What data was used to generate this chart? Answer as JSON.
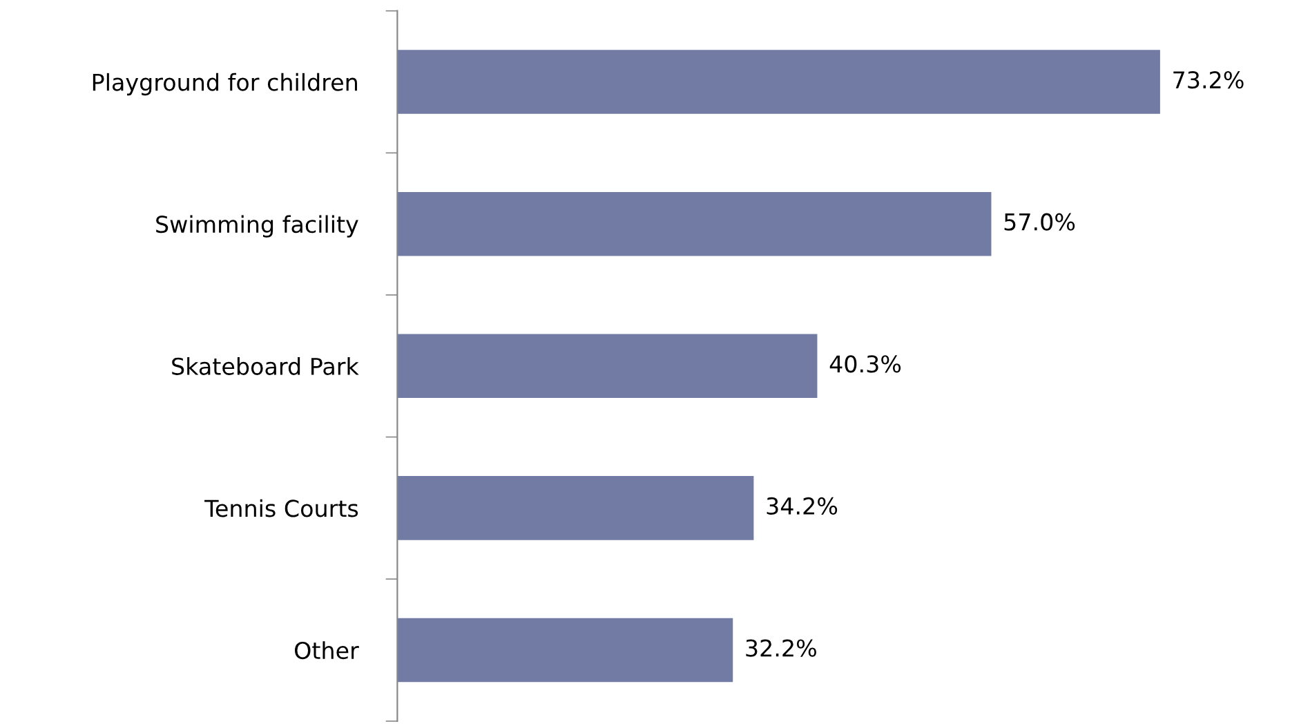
{
  "chart_data": {
    "type": "bar",
    "orientation": "horizontal",
    "categories": [
      "Playground for children",
      "Swimming facility",
      "Skateboard Park",
      "Tennis Courts",
      "Other"
    ],
    "values": [
      73.2,
      57.0,
      40.3,
      34.2,
      32.2
    ],
    "value_labels": [
      "73.2%",
      "57.0%",
      "40.3%",
      "34.2%",
      "32.2%"
    ],
    "color": "#717ba3",
    "grid": false
  }
}
